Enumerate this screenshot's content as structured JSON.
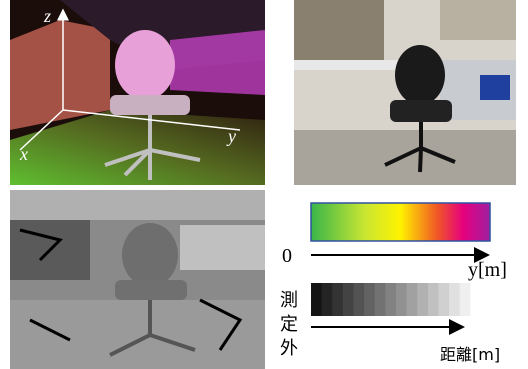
{
  "panel_3d": {
    "axis_labels": {
      "z": "z",
      "y": "y",
      "x": "x"
    }
  },
  "legend": {
    "color_zero": "0",
    "color_unit": "y[m]",
    "out_of_range": [
      "測",
      "定",
      "外"
    ],
    "distance_unit": "距離[m]"
  }
}
